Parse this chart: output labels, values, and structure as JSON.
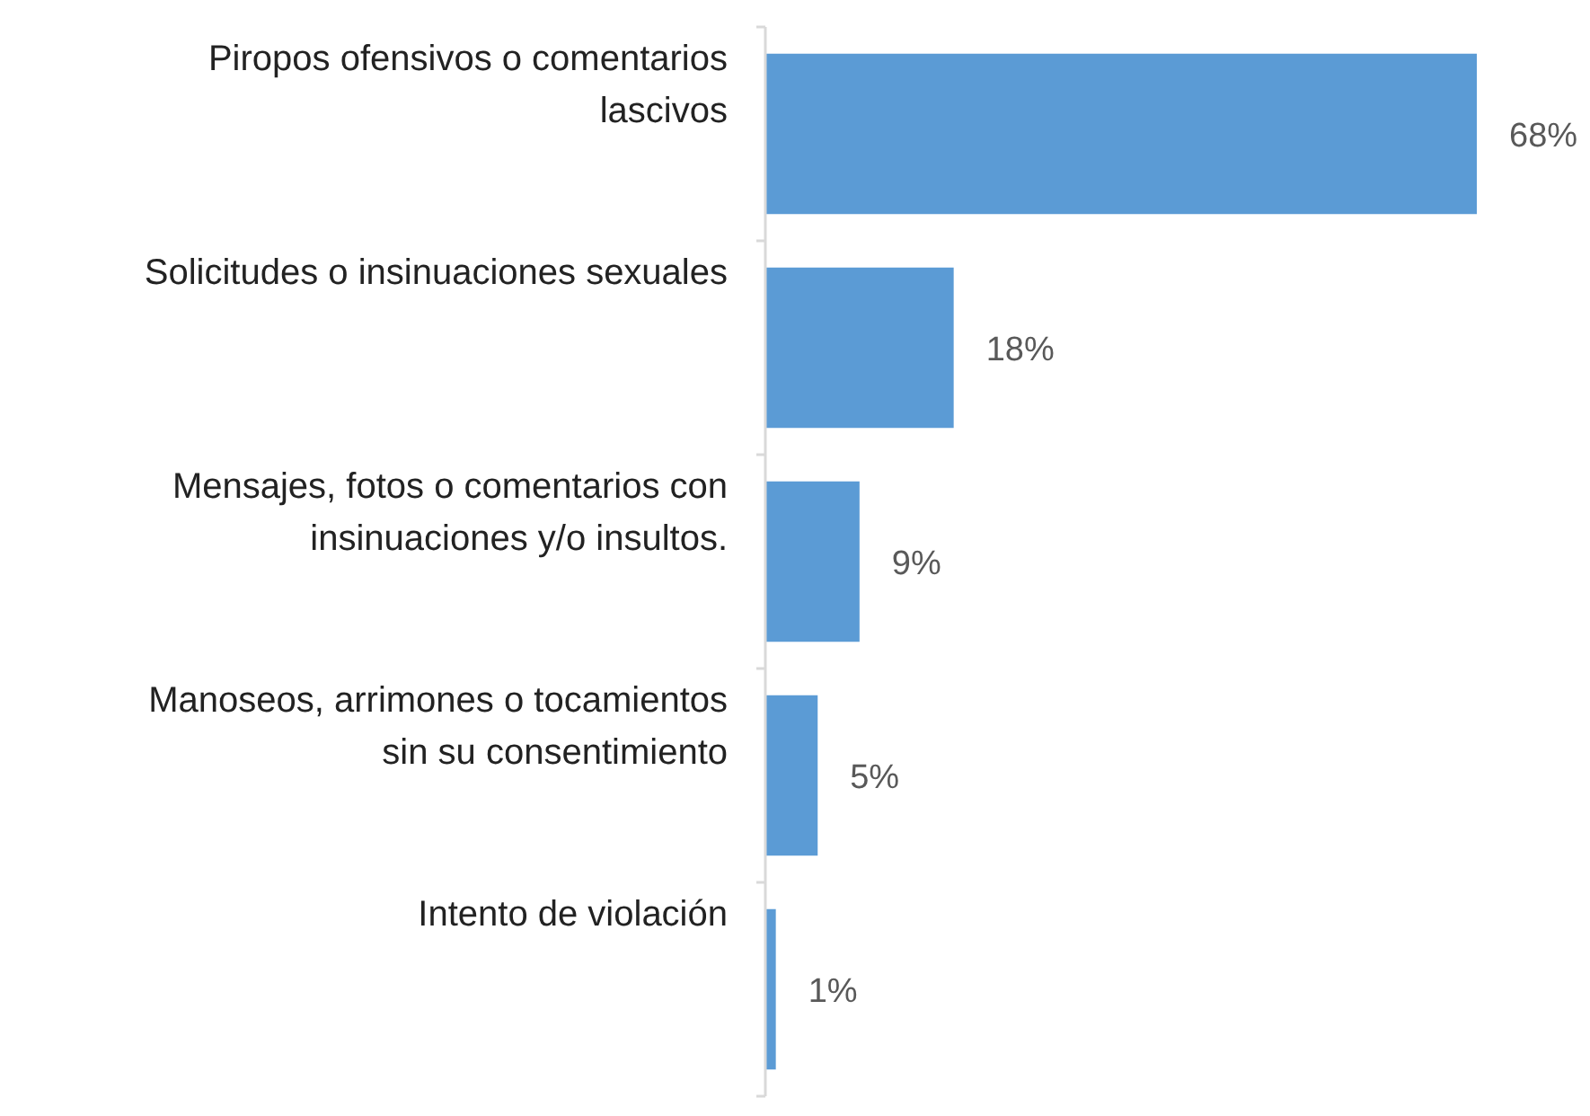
{
  "chart_data": {
    "type": "bar",
    "orientation": "horizontal",
    "categories": [
      "Piropos ofensivos o comentarios lascivos",
      "Solicitudes o insinuaciones sexuales",
      "Mensajes, fotos o comentarios con insinuaciones y/o insultos.",
      "Manoseos, arrimones o tocamientos sin su consentimiento",
      "Intento de violación"
    ],
    "values": [
      68,
      18,
      9,
      5,
      1
    ],
    "value_labels": [
      "68%",
      "18%",
      "9%",
      "5%",
      "1%"
    ],
    "color": "#5b9bd5"
  }
}
